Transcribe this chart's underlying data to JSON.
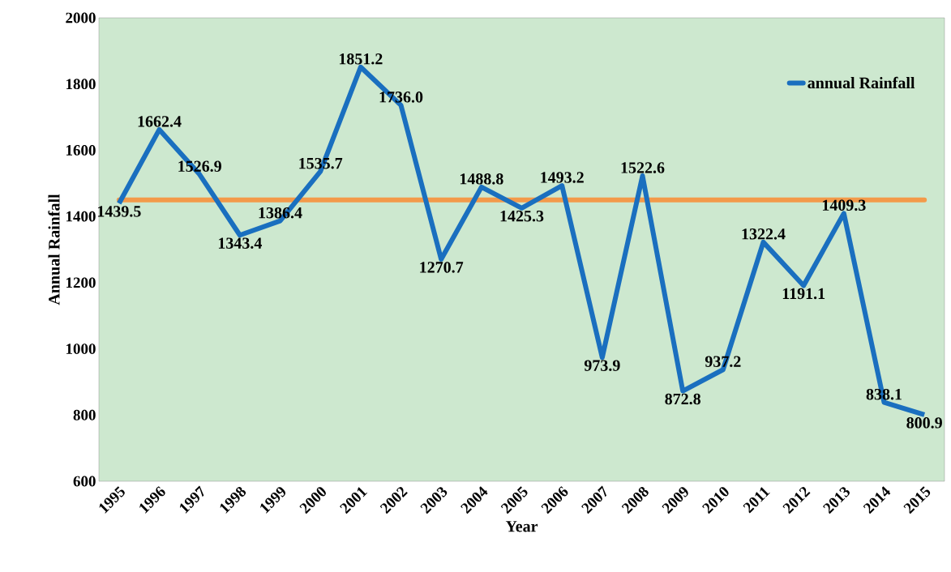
{
  "chart_data": {
    "type": "line",
    "xlabel": "Year",
    "ylabel": "Annual Rainfall",
    "categories": [
      "1995",
      "1996",
      "1997",
      "1998",
      "1999",
      "2000",
      "2001",
      "2002",
      "2003",
      "2004",
      "2005",
      "2006",
      "2007",
      "2008",
      "2009",
      "2010",
      "2011",
      "2012",
      "2013",
      "2014",
      "2015"
    ],
    "series": [
      {
        "name": "annual Rainfall",
        "color": "#1a6fbf",
        "values": [
          1439.5,
          1662.4,
          1526.9,
          1343.4,
          1386.4,
          1535.7,
          1851.2,
          1736.0,
          1270.7,
          1488.8,
          1425.3,
          1493.2,
          973.9,
          1522.6,
          872.8,
          937.2,
          1322.4,
          1191.1,
          1409.3,
          838.1,
          800.9
        ],
        "value_labels": [
          "1439.5",
          "1662.4",
          "1526.9",
          "1343.4",
          "1386.4",
          "1535.7",
          "1851.2",
          "1736.0",
          "1270.7",
          "1488.8",
          "1425.3",
          "1493.2",
          "973.9",
          "1522.6",
          "872.8",
          "937.2",
          "1322.4",
          "1191.1",
          "1409.3",
          "838.1",
          "800.9"
        ]
      }
    ],
    "ref_lines": [
      {
        "axis": "y",
        "value": 1450,
        "color": "#f39a4a"
      }
    ],
    "ylim": [
      600,
      2000
    ],
    "yticks": [
      600,
      800,
      1000,
      1200,
      1400,
      1600,
      1800,
      2000
    ],
    "grid": false,
    "legend": "top right",
    "marker": "none",
    "line_style": "solid"
  }
}
